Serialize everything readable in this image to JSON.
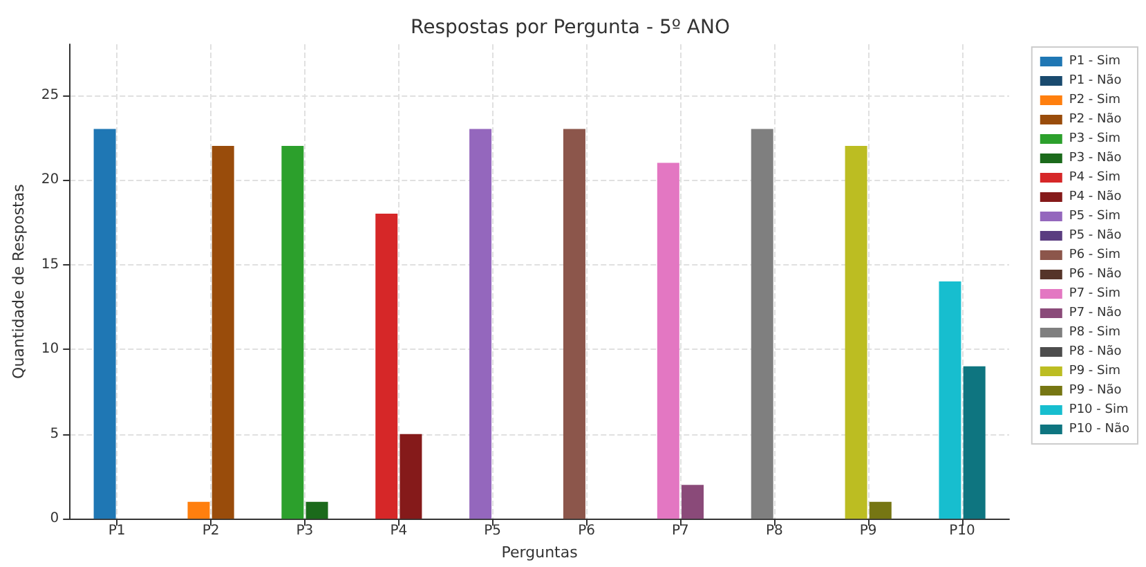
{
  "chart_data": {
    "type": "bar",
    "title": "Respostas por Pergunta - 5º ANO",
    "xlabel": "Perguntas",
    "ylabel": "Quantidade de Respostas",
    "categories": [
      "P1",
      "P2",
      "P3",
      "P4",
      "P5",
      "P6",
      "P7",
      "P8",
      "P9",
      "P10"
    ],
    "ylim": [
      0,
      28
    ],
    "yticks": [
      0,
      5,
      10,
      15,
      20,
      25
    ],
    "grid": true,
    "legend": "right",
    "series": [
      {
        "name": "P1 - Sim",
        "color": "#1f77b4",
        "values": [
          23,
          null,
          null,
          null,
          null,
          null,
          null,
          null,
          null,
          null
        ]
      },
      {
        "name": "P1 - Não",
        "color": "#1a4a6e",
        "values": [
          0,
          null,
          null,
          null,
          null,
          null,
          null,
          null,
          null,
          null
        ]
      },
      {
        "name": "P2 - Sim",
        "color": "#ff7f0e",
        "values": [
          null,
          1,
          null,
          null,
          null,
          null,
          null,
          null,
          null,
          null
        ]
      },
      {
        "name": "P2 - Não",
        "color": "#994c0b",
        "values": [
          null,
          22,
          null,
          null,
          null,
          null,
          null,
          null,
          null,
          null
        ]
      },
      {
        "name": "P3 - Sim",
        "color": "#2ca02c",
        "values": [
          null,
          null,
          22,
          null,
          null,
          null,
          null,
          null,
          null,
          null
        ]
      },
      {
        "name": "P3 - Não",
        "color": "#1b6a1b",
        "values": [
          null,
          null,
          1,
          null,
          null,
          null,
          null,
          null,
          null,
          null
        ]
      },
      {
        "name": "P4 - Sim",
        "color": "#d62728",
        "values": [
          null,
          null,
          null,
          18,
          null,
          null,
          null,
          null,
          null,
          null
        ]
      },
      {
        "name": "P4 - Não",
        "color": "#851a1a",
        "values": [
          null,
          null,
          null,
          5,
          null,
          null,
          null,
          null,
          null,
          null
        ]
      },
      {
        "name": "P5 - Sim",
        "color": "#9467bd",
        "values": [
          null,
          null,
          null,
          null,
          23,
          null,
          null,
          null,
          null,
          null
        ]
      },
      {
        "name": "P5 - Não",
        "color": "#5a3d80",
        "values": [
          null,
          null,
          null,
          null,
          0,
          null,
          null,
          null,
          null,
          null
        ]
      },
      {
        "name": "P6 - Sim",
        "color": "#8c564b",
        "values": [
          null,
          null,
          null,
          null,
          null,
          23,
          null,
          null,
          null,
          null
        ]
      },
      {
        "name": "P6 - Não",
        "color": "#553429",
        "values": [
          null,
          null,
          null,
          null,
          null,
          0,
          null,
          null,
          null,
          null
        ]
      },
      {
        "name": "P7 - Sim",
        "color": "#e377c2",
        "values": [
          null,
          null,
          null,
          null,
          null,
          null,
          21,
          null,
          null,
          null
        ]
      },
      {
        "name": "P7 - Não",
        "color": "#8a4a79",
        "values": [
          null,
          null,
          null,
          null,
          null,
          null,
          2,
          null,
          null,
          null
        ]
      },
      {
        "name": "P8 - Sim",
        "color": "#7f7f7f",
        "values": [
          null,
          null,
          null,
          null,
          null,
          null,
          null,
          23,
          null,
          null
        ]
      },
      {
        "name": "P8 - Não",
        "color": "#4d4d4d",
        "values": [
          null,
          null,
          null,
          null,
          null,
          null,
          null,
          0,
          null,
          null
        ]
      },
      {
        "name": "P9 - Sim",
        "color": "#bcbd22",
        "values": [
          null,
          null,
          null,
          null,
          null,
          null,
          null,
          null,
          22,
          null
        ]
      },
      {
        "name": "P9 - Não",
        "color": "#767613",
        "values": [
          null,
          null,
          null,
          null,
          null,
          null,
          null,
          null,
          1,
          null
        ]
      },
      {
        "name": "P10 - Sim",
        "color": "#17becf",
        "values": [
          null,
          null,
          null,
          null,
          null,
          null,
          null,
          null,
          null,
          14
        ]
      },
      {
        "name": "P10 - Não",
        "color": "#0e7580",
        "values": [
          null,
          null,
          null,
          null,
          null,
          null,
          null,
          null,
          null,
          9
        ]
      }
    ]
  }
}
